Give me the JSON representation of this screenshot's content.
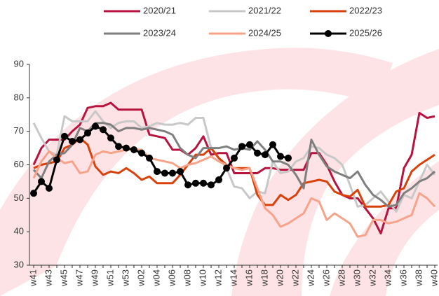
{
  "chart_data": {
    "type": "line",
    "categories": [
      "w41",
      null,
      "w43",
      null,
      "w45",
      null,
      "w47",
      null,
      "w49",
      null,
      "w51",
      null,
      "w53",
      null,
      "w02",
      null,
      "w04",
      null,
      "w06",
      null,
      "w08",
      null,
      "w10",
      null,
      "w12",
      null,
      "w14",
      null,
      "w16",
      null,
      "w18",
      null,
      "w20",
      null,
      "w22",
      null,
      "w24",
      null,
      "w26",
      null,
      "w28",
      null,
      "w30",
      null,
      "w32",
      null,
      "w34",
      null,
      "w36",
      null,
      "w38",
      null,
      "w40"
    ],
    "series": [
      {
        "name": "2020/21",
        "color": "#b8123e",
        "values": [
          60,
          65,
          67.5,
          67.5,
          67.5,
          70,
          72,
          77,
          77.5,
          77.5,
          78.5,
          76.5,
          76.5,
          76.5,
          76.5,
          69,
          68.5,
          68,
          64.5,
          64.5,
          63,
          65,
          68.5,
          63,
          63.5,
          63.5,
          57.5,
          57.5,
          57.5,
          57.5,
          59,
          59,
          58.5,
          58.5,
          58.5,
          58.5,
          63.5,
          63.5,
          60,
          55,
          51,
          50,
          50,
          47,
          44,
          39.5,
          47,
          47,
          59,
          63,
          75.5,
          74,
          74.5
        ]
      },
      {
        "name": "2021/22",
        "color": "#c8c8c8",
        "values": [
          72.5,
          68,
          64,
          63,
          74.5,
          73,
          73,
          73,
          76,
          73,
          71,
          72.5,
          73,
          73,
          71,
          71.5,
          72.5,
          72,
          72,
          72.5,
          72,
          74,
          74,
          65,
          62,
          59,
          53.5,
          53,
          50,
          52,
          51.5,
          61,
          57.5,
          58,
          61,
          62,
          65.5,
          65,
          63,
          62,
          60,
          54,
          47.5,
          48,
          50,
          52,
          49,
          46,
          51,
          50,
          55,
          60,
          57
        ]
      },
      {
        "name": "2022/23",
        "color": "#d9410b",
        "values": [
          59,
          60,
          60.5,
          61,
          65,
          66,
          68,
          66,
          59.5,
          57,
          58,
          57.5,
          59,
          57.5,
          55.5,
          56.5,
          54.5,
          54.5,
          54.5,
          57,
          60,
          63,
          63,
          65,
          62,
          60,
          59,
          59,
          59,
          51,
          48,
          48,
          51,
          49.5,
          51,
          54.5,
          55,
          55.5,
          55,
          52,
          51,
          50.5,
          52.5,
          47.5,
          47.5,
          47.5,
          48,
          52,
          53,
          58,
          60,
          61.5,
          63
        ]
      },
      {
        "name": "2023/24",
        "color": "#7f7f7f",
        "values": [
          58.5,
          56,
          61,
          63,
          63.5,
          66,
          71,
          70,
          72.5,
          72.5,
          72,
          70,
          71,
          71,
          70.5,
          71,
          70.5,
          70,
          69,
          65,
          63,
          62,
          65,
          65,
          65,
          65.5,
          64.5,
          65,
          64.5,
          67,
          64.5,
          61,
          61,
          60,
          57,
          53,
          67.5,
          63,
          59.5,
          58,
          57,
          56,
          58,
          54,
          51,
          49.5,
          47.5,
          48,
          51.5,
          53,
          55,
          56,
          58
        ]
      },
      {
        "name": "2024/25",
        "color": "#f7a38a",
        "values": [
          56,
          61,
          64,
          62,
          60.5,
          61,
          57.5,
          58,
          63,
          64,
          63.5,
          64,
          64.5,
          64.5,
          64.5,
          62,
          61.5,
          61,
          60.5,
          59,
          60,
          60.5,
          61.5,
          62.5,
          61,
          60,
          59,
          58.5,
          59,
          53,
          47,
          45,
          41.5,
          42.5,
          44,
          45.5,
          50,
          49,
          43.5,
          45.5,
          44,
          42.5,
          38.5,
          39,
          43.5,
          43.5,
          42.5,
          43,
          44,
          45,
          51.5,
          50,
          47.5
        ]
      },
      {
        "name": "2025/26",
        "color": "#000000",
        "markers": true,
        "values": [
          51.5,
          55,
          53,
          61.5,
          68.5,
          67,
          67.5,
          69.5,
          71.5,
          70.5,
          68,
          65.5,
          65,
          64.5,
          63.5,
          62,
          58,
          57.5,
          57.5,
          58,
          54,
          54.5,
          54.5,
          54,
          55.5,
          59,
          62,
          65.5,
          66,
          63.5,
          63,
          66,
          62.5,
          62,
          null,
          null,
          null,
          null,
          null,
          null,
          null,
          null,
          null,
          null,
          null,
          null,
          null,
          null,
          null,
          null,
          null,
          null,
          null
        ]
      }
    ],
    "ylim": [
      30,
      90
    ],
    "yticks": [
      30,
      40,
      50,
      60,
      70,
      80,
      90
    ],
    "grid": false
  }
}
